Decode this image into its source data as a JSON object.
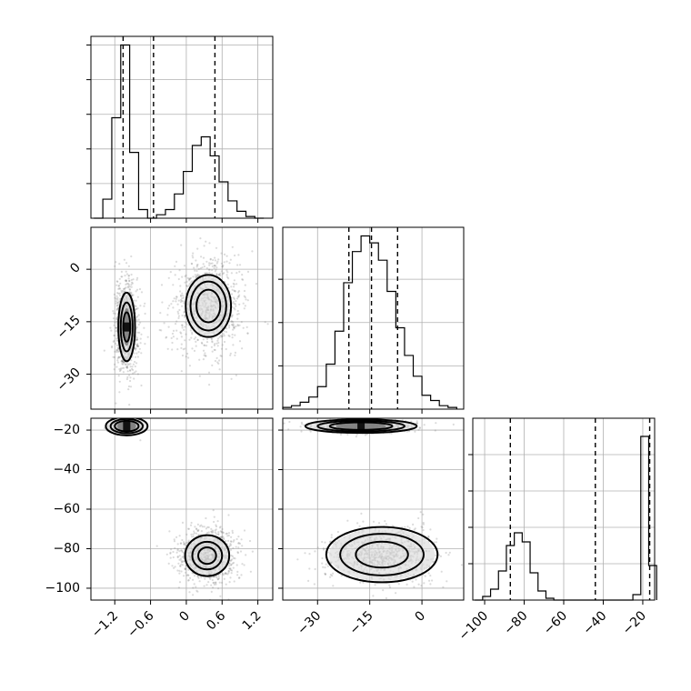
{
  "chart_data": {
    "type": "corner",
    "parameters": [
      "p0",
      "p1",
      "p2"
    ],
    "panels": [
      {
        "id": "hist-p0",
        "type": "histogram",
        "row": 0,
        "col": 0,
        "xlim": [
          -1.6,
          1.45
        ],
        "bins": [
          -1.55,
          -1.4,
          -1.25,
          -1.1,
          -0.95,
          -0.8,
          -0.65,
          -0.5,
          -0.35,
          -0.2,
          -0.05,
          0.1,
          0.25,
          0.4,
          0.55,
          0.7,
          0.85,
          1.0,
          1.15,
          1.3
        ],
        "counts": [
          0,
          0.11,
          0.58,
          1.0,
          0.38,
          0.05,
          0,
          0.02,
          0.05,
          0.14,
          0.27,
          0.42,
          0.47,
          0.36,
          0.21,
          0.1,
          0.04,
          0.01,
          0
        ],
        "ymax": 1.05,
        "quantiles": [
          -1.06,
          -0.55,
          0.48
        ],
        "xticks": [
          -1.2,
          -0.6,
          0.0,
          0.6,
          1.2
        ],
        "yticks": [
          0.2,
          0.4,
          0.6,
          0.8,
          1.0
        ]
      },
      {
        "id": "hist-p1",
        "type": "histogram",
        "row": 1,
        "col": 1,
        "xlim": [
          -40,
          12
        ],
        "bins": [
          -40,
          -37.5,
          -35,
          -32.5,
          -30,
          -27.5,
          -25,
          -22.5,
          -20,
          -17.5,
          -15,
          -12.5,
          -10,
          -7.5,
          -5,
          -2.5,
          0,
          2.5,
          5,
          7.5,
          10
        ],
        "counts": [
          0.01,
          0.02,
          0.04,
          0.07,
          0.13,
          0.26,
          0.45,
          0.73,
          0.91,
          1.0,
          0.96,
          0.86,
          0.68,
          0.47,
          0.31,
          0.19,
          0.08,
          0.05,
          0.02,
          0.01
        ],
        "ymax": 1.05,
        "quantiles": [
          -21.0,
          -14.5,
          -7.0
        ],
        "xticks": [
          -30,
          -15,
          0
        ],
        "yticks": [
          0.25,
          0.5,
          0.75
        ]
      },
      {
        "id": "hist-p2",
        "type": "histogram",
        "row": 2,
        "col": 2,
        "xlim": [
          -106,
          -14
        ],
        "bins": [
          -105,
          -101,
          -97,
          -93,
          -89,
          -85,
          -81,
          -77,
          -73,
          -69,
          -65,
          -61,
          -57,
          -53,
          -49,
          -45,
          -41,
          -37,
          -33,
          -29,
          -25,
          -21,
          -17,
          -13
        ],
        "counts": [
          0,
          0.02,
          0.06,
          0.16,
          0.3,
          0.37,
          0.32,
          0.15,
          0.05,
          0.01,
          0,
          0,
          0,
          0,
          0,
          0,
          0,
          0,
          0,
          0,
          0.03,
          0.9,
          0.19
        ],
        "ymax": 1.0,
        "quantiles": [
          -87.0,
          -44.0,
          -16.5
        ],
        "xticks": [
          -100,
          -80,
          -60,
          -40,
          -20
        ],
        "yticks": [
          0.2,
          0.4,
          0.6,
          0.8
        ]
      },
      {
        "id": "scatter-p0-p1",
        "type": "density",
        "row": 1,
        "col": 0,
        "xlim": [
          -1.6,
          1.45
        ],
        "ylim": [
          -40,
          12
        ],
        "xticks": [
          -1.2,
          -0.6,
          0.0,
          0.6,
          1.2
        ],
        "yticks": [
          0,
          -15,
          -30
        ],
        "blobs": [
          {
            "cx": -1.0,
            "cy": -16.5,
            "sx": 0.1,
            "sy": 7.0,
            "levels": [
              0.06,
              0.1,
              0.14
            ],
            "core": true
          },
          {
            "cx": 0.37,
            "cy": -10.5,
            "sx": 0.3,
            "sy": 7.0,
            "levels": [
              0.2,
              0.3,
              0.38
            ],
            "core": false
          }
        ]
      },
      {
        "id": "scatter-p0-p2",
        "type": "density",
        "row": 2,
        "col": 0,
        "xlim": [
          -1.6,
          1.45
        ],
        "ylim": [
          -106,
          -14
        ],
        "xticks": [
          -1.2,
          -0.6,
          0.0,
          0.6,
          1.2
        ],
        "yticks": [
          -20,
          -40,
          -60,
          -80,
          -100
        ],
        "blobs": [
          {
            "cx": -1.0,
            "cy": -18.0,
            "sx": 0.12,
            "sy": 1.6,
            "levels": [
              0.2,
              0.27,
              0.35
            ],
            "core": true
          },
          {
            "cx": 0.35,
            "cy": -83.5,
            "sx": 0.25,
            "sy": 7.0,
            "levels": [
              0.15,
              0.25,
              0.37
            ],
            "core": false
          }
        ]
      },
      {
        "id": "scatter-p1-p2",
        "type": "density",
        "row": 2,
        "col": 1,
        "xlim": [
          -40,
          12
        ],
        "ylim": [
          -106,
          -14
        ],
        "xticks": [
          -30,
          -15,
          0
        ],
        "yticks": [
          -20,
          -40,
          -60,
          -80,
          -100
        ],
        "blobs": [
          {
            "cx": -17.5,
            "cy": -18.0,
            "sx": 7.0,
            "sy": 1.5,
            "levels": [
              9.0,
              12.5,
              16.0
            ],
            "core": true
          },
          {
            "cx": -11.5,
            "cy": -83.0,
            "sx": 8.0,
            "sy": 7.0,
            "levels": [
              7.5,
              12.0,
              16.0
            ],
            "core": false
          }
        ]
      }
    ],
    "grid": true,
    "colors": {
      "ink": "#000000",
      "grid": "#b0b0b0",
      "scatter": "#7f7f7f"
    }
  }
}
